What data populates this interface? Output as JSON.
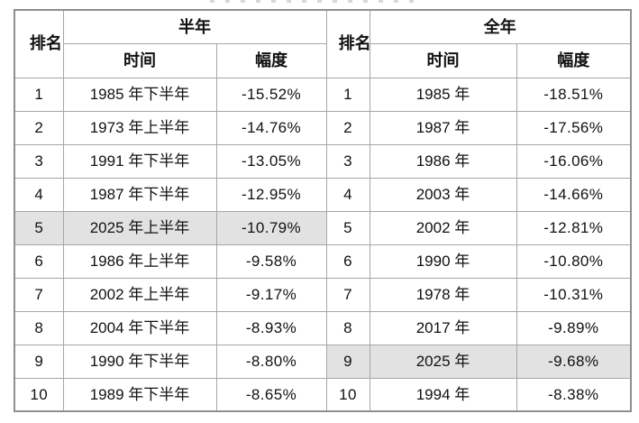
{
  "chart_data": {
    "type": "table",
    "header": {
      "rank": "排名",
      "half_title": "半年",
      "full_title": "全年",
      "time": "时间",
      "amp": "幅度"
    },
    "rows": [
      {
        "half": {
          "rank": "1",
          "time": "1985 年下半年",
          "amp": "-15.52%",
          "highlight": false
        },
        "full": {
          "rank": "1",
          "time": "1985 年",
          "amp": "-18.51%",
          "highlight": false
        }
      },
      {
        "half": {
          "rank": "2",
          "time": "1973 年上半年",
          "amp": "-14.76%",
          "highlight": false
        },
        "full": {
          "rank": "2",
          "time": "1987 年",
          "amp": "-17.56%",
          "highlight": false
        }
      },
      {
        "half": {
          "rank": "3",
          "time": "1991 年下半年",
          "amp": "-13.05%",
          "highlight": false
        },
        "full": {
          "rank": "3",
          "time": "1986 年",
          "amp": "-16.06%",
          "highlight": false
        }
      },
      {
        "half": {
          "rank": "4",
          "time": "1987 年下半年",
          "amp": "-12.95%",
          "highlight": false
        },
        "full": {
          "rank": "4",
          "time": "2003 年",
          "amp": "-14.66%",
          "highlight": false
        }
      },
      {
        "half": {
          "rank": "5",
          "time": "2025 年上半年",
          "amp": "-10.79%",
          "highlight": true
        },
        "full": {
          "rank": "5",
          "time": "2002 年",
          "amp": "-12.81%",
          "highlight": false
        }
      },
      {
        "half": {
          "rank": "6",
          "time": "1986 年上半年",
          "amp": "-9.58%",
          "highlight": false
        },
        "full": {
          "rank": "6",
          "time": "1990 年",
          "amp": "-10.80%",
          "highlight": false
        }
      },
      {
        "half": {
          "rank": "7",
          "time": "2002 年上半年",
          "amp": "-9.17%",
          "highlight": false
        },
        "full": {
          "rank": "7",
          "time": "1978 年",
          "amp": "-10.31%",
          "highlight": false
        }
      },
      {
        "half": {
          "rank": "8",
          "time": "2004 年下半年",
          "amp": "-8.93%",
          "highlight": false
        },
        "full": {
          "rank": "8",
          "time": "2017 年",
          "amp": "-9.89%",
          "highlight": false
        }
      },
      {
        "half": {
          "rank": "9",
          "time": "1990 年下半年",
          "amp": "-8.80%",
          "highlight": false
        },
        "full": {
          "rank": "9",
          "time": "2025 年",
          "amp": "-9.68%",
          "highlight": true
        }
      },
      {
        "half": {
          "rank": "10",
          "time": "1989 年下半年",
          "amp": "-8.65%",
          "highlight": false
        },
        "full": {
          "rank": "10",
          "time": "1994 年",
          "amp": "-8.38%",
          "highlight": false
        }
      }
    ],
    "colors": {
      "highlight_bg": "#e2e2e2",
      "inner_border": "#a6a6a6",
      "outer_border": "#8f8f8f",
      "text": "#111111"
    }
  }
}
